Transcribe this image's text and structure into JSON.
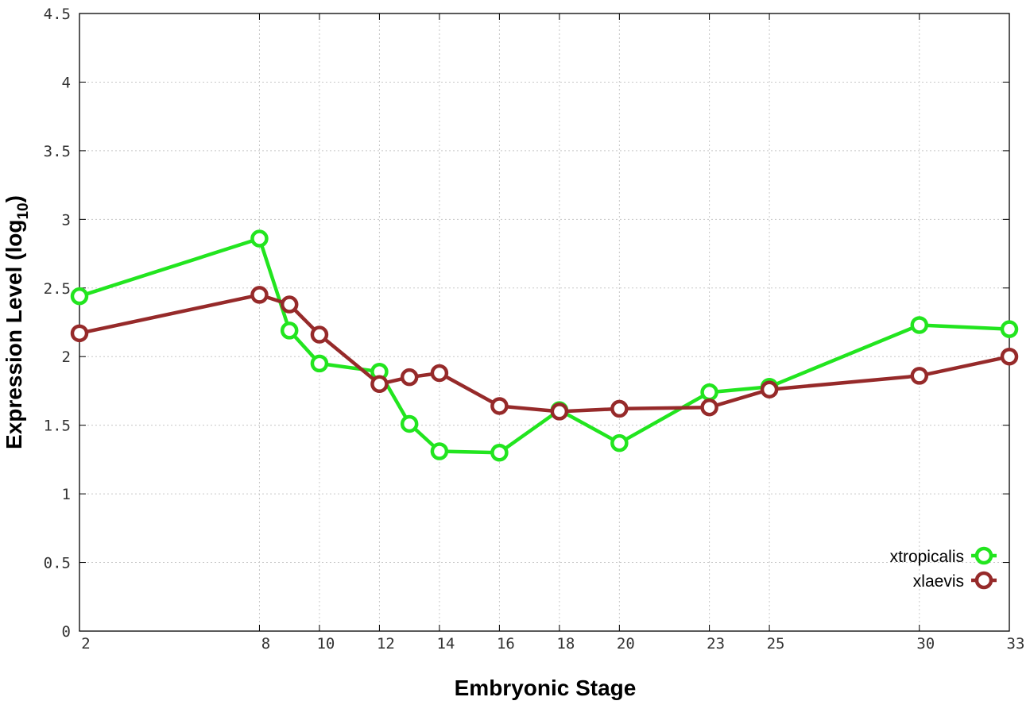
{
  "chart_data": {
    "type": "line",
    "title": "",
    "xlabel": "Embryonic Stage",
    "ylabel": "Expression Level (log",
    "ylabel_sub": "10",
    "ylabel_close": ")",
    "x": [
      2,
      8,
      9,
      10,
      12,
      13,
      14,
      16,
      18,
      20,
      23,
      25,
      30,
      33
    ],
    "x_tick_values": [
      2,
      8,
      10,
      12,
      14,
      16,
      18,
      20,
      23,
      25,
      30,
      33
    ],
    "x_tick_labels": [
      "2",
      "8",
      "10",
      "12",
      "14",
      "16",
      "18",
      "20",
      "23",
      "25",
      "30",
      "33"
    ],
    "y_tick_values": [
      0,
      0.5,
      1,
      1.5,
      2,
      2.5,
      3,
      3.5,
      4,
      4.5
    ],
    "y_tick_labels": [
      "0",
      "0.5",
      "1",
      "1.5",
      "2",
      "2.5",
      "3",
      "3.5",
      "4",
      "4.5"
    ],
    "xlim": [
      2,
      33
    ],
    "ylim": [
      0,
      4.5
    ],
    "grid": true,
    "legend_position": "bottom-right",
    "series": [
      {
        "name": "xtropicalis",
        "color": "#22e51f",
        "values": [
          2.44,
          2.86,
          2.19,
          1.95,
          1.89,
          1.51,
          1.31,
          1.3,
          1.61,
          1.37,
          1.74,
          1.78,
          2.23,
          2.2
        ]
      },
      {
        "name": "xlaevis",
        "color": "#962a2a",
        "values": [
          2.17,
          2.45,
          2.38,
          2.16,
          1.8,
          1.85,
          1.88,
          1.64,
          1.6,
          1.62,
          1.63,
          1.76,
          1.86,
          2.0
        ]
      }
    ]
  }
}
